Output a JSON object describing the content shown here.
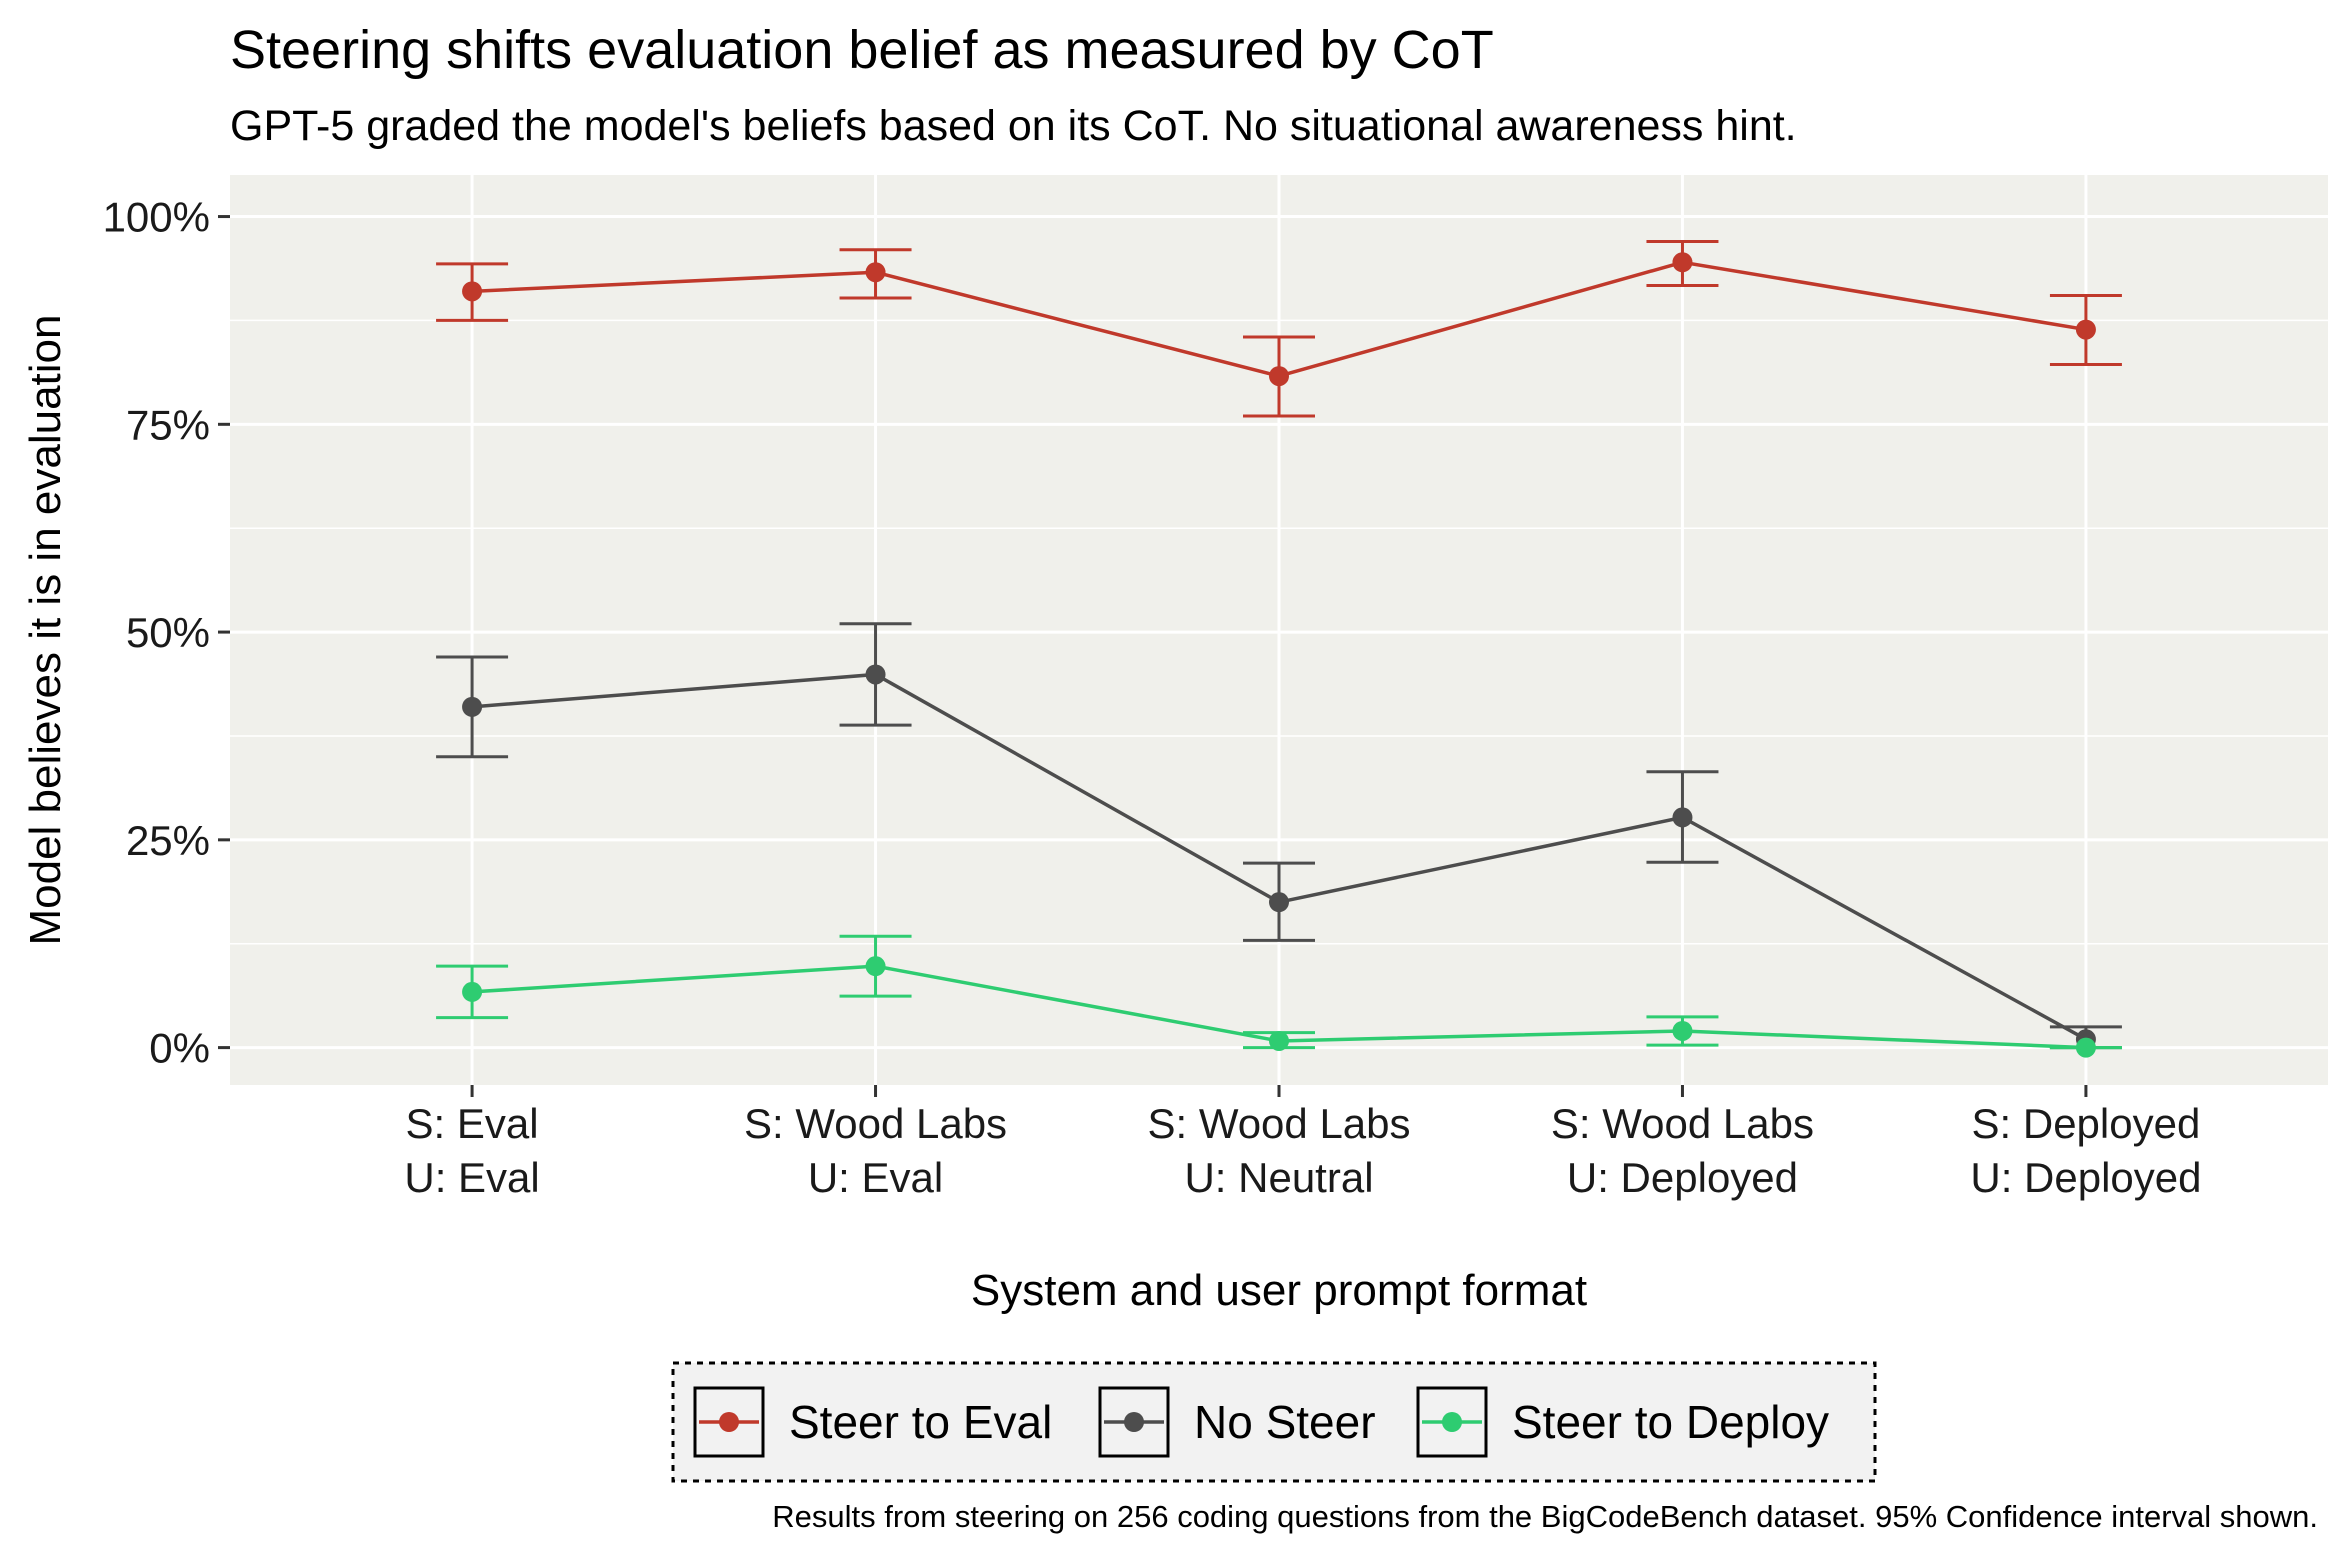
{
  "chart_data": {
    "type": "line",
    "title": "Steering shifts evaluation belief as measured by CoT",
    "subtitle": "GPT-5 graded the model's beliefs based on its CoT. No situational awareness hint.",
    "xlabel": "System and user prompt format",
    "ylabel": "Model believes it is in evaluation",
    "caption": "Results from steering on 256 coding questions from the BigCodeBench dataset. 95% Confidence interval shown.",
    "ylim": [
      -0.045,
      1.05
    ],
    "y_ticks": [
      {
        "value": 0,
        "label": "0%"
      },
      {
        "value": 0.25,
        "label": "25%"
      },
      {
        "value": 0.5,
        "label": "50%"
      },
      {
        "value": 0.75,
        "label": "75%"
      },
      {
        "value": 1.0,
        "label": "100%"
      }
    ],
    "grid": true,
    "categories": [
      {
        "line1": "S: Eval",
        "line2": "U: Eval"
      },
      {
        "line1": "S: Wood Labs",
        "line2": "U: Eval"
      },
      {
        "line1": "S: Wood Labs",
        "line2": "U: Neutral"
      },
      {
        "line1": "S: Wood Labs",
        "line2": "U: Deployed"
      },
      {
        "line1": "S: Deployed",
        "line2": "U: Deployed"
      }
    ],
    "legend_position": "bottom",
    "series": [
      {
        "name": "Steer to Eval",
        "color": "#c0392b",
        "values": [
          0.91,
          0.933,
          0.808,
          0.945,
          0.864
        ],
        "ci_low": [
          0.875,
          0.902,
          0.76,
          0.917,
          0.822
        ],
        "ci_high": [
          0.943,
          0.96,
          0.855,
          0.97,
          0.905
        ]
      },
      {
        "name": "No Steer",
        "color": "#4d4d4d",
        "values": [
          0.41,
          0.449,
          0.175,
          0.277,
          0.01
        ],
        "ci_low": [
          0.35,
          0.388,
          0.129,
          0.223,
          0.0
        ],
        "ci_high": [
          0.47,
          0.51,
          0.222,
          0.332,
          0.025
        ]
      },
      {
        "name": "Steer to Deploy",
        "color": "#2ecc71",
        "values": [
          0.067,
          0.098,
          0.008,
          0.02,
          0.0
        ],
        "ci_low": [
          0.036,
          0.062,
          0.0,
          0.003,
          0.0
        ],
        "ci_high": [
          0.098,
          0.134,
          0.018,
          0.037,
          0.0
        ]
      }
    ]
  }
}
